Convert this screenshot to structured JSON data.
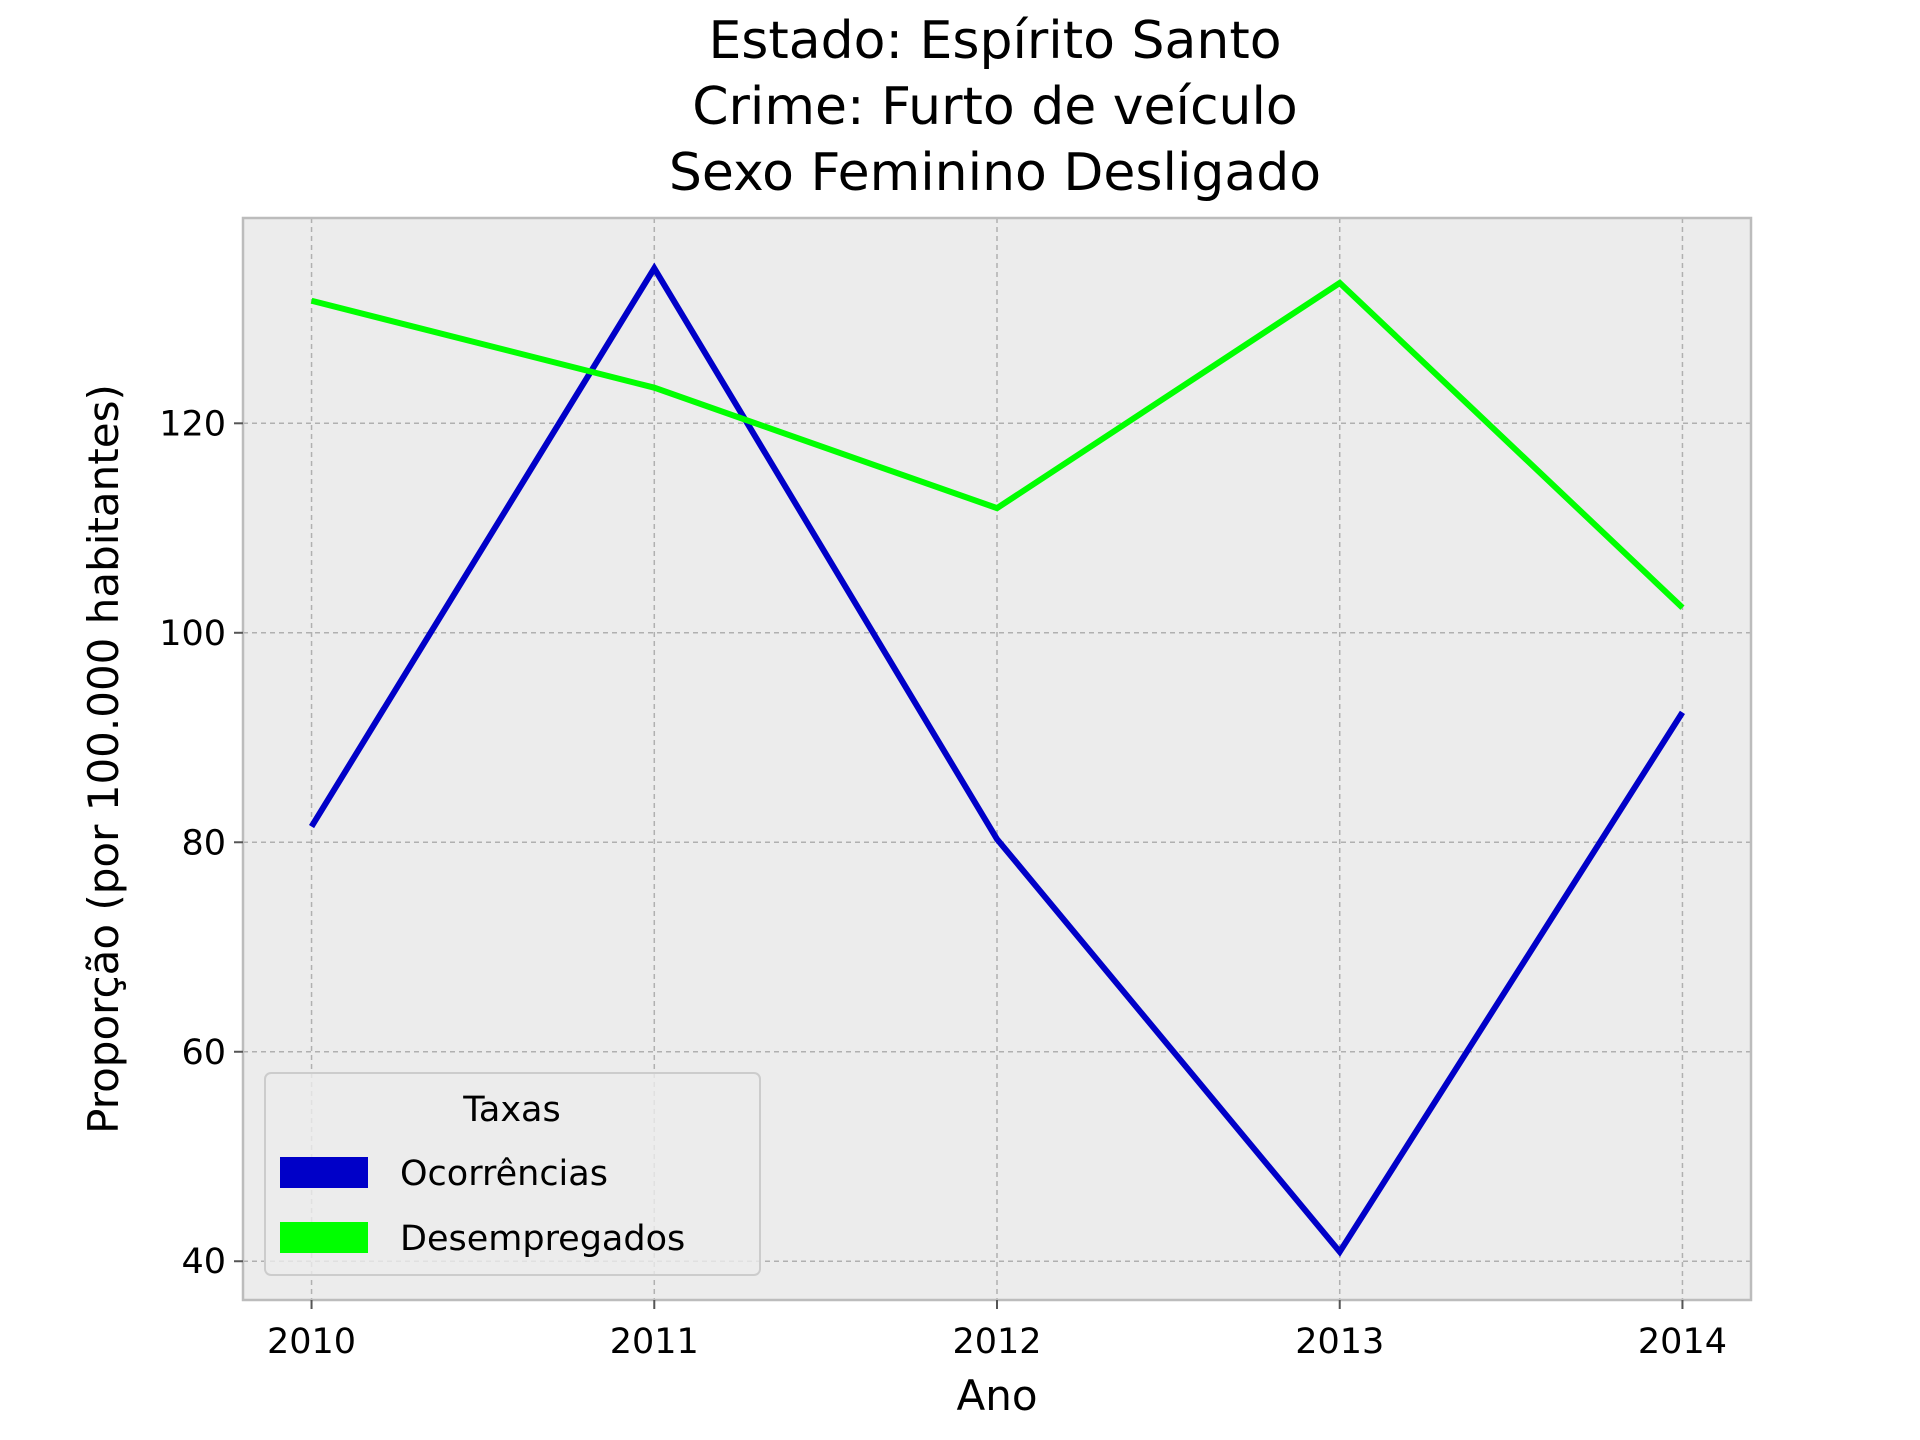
{
  "chart_data": {
    "type": "line",
    "title_lines": [
      "Estado: Espírito Santo",
      "Crime: Furto de veículo",
      "Sexo  Feminino   Desligado"
    ],
    "xlabel": "Ano",
    "ylabel": "Proporção (por 100.000 habitantes)",
    "x": [
      2010,
      2011,
      2012,
      2013,
      2014
    ],
    "x_tick_labels": [
      "2010",
      "2011",
      "2012",
      "2013",
      "2014"
    ],
    "y_ticks": [
      40,
      60,
      80,
      100,
      120
    ],
    "y_tick_labels": [
      "40",
      "60",
      "80",
      "100",
      "120"
    ],
    "xlim": [
      2009.8,
      2014.2
    ],
    "ylim": [
      36.3,
      139.6
    ],
    "grid": true,
    "legend": {
      "title": "Taxas",
      "placement": "lower-left"
    },
    "series": [
      {
        "name": "Ocorrências",
        "color": "#0000c8",
        "values": [
          81.5,
          134.8,
          80.3,
          40.9,
          92.4
        ]
      },
      {
        "name": "Desempregados",
        "color": "#00ff00",
        "values": [
          131.7,
          123.4,
          111.9,
          133.4,
          102.4
        ]
      }
    ],
    "colors": {
      "plot_background": "#ececec",
      "grid": "#b0b0b0",
      "frame": "#bcbcbc"
    }
  }
}
